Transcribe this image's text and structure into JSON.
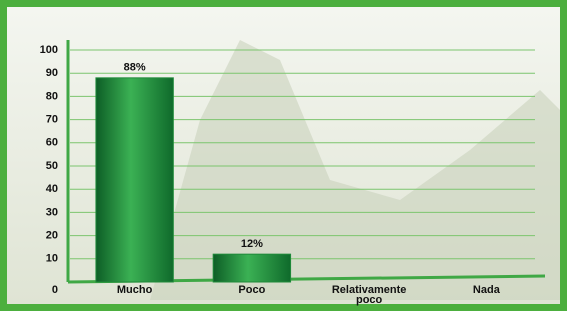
{
  "chart_data": {
    "type": "bar",
    "categories": [
      "Mucho",
      "Poco",
      "Relativamente poco",
      "Nada"
    ],
    "values": [
      88,
      12,
      0,
      0
    ],
    "value_labels": [
      "88%",
      "12%",
      null,
      null
    ],
    "color": "#1f8a3a",
    "ylim": [
      0,
      100
    ],
    "yticks": [
      0,
      10,
      20,
      30,
      40,
      50,
      60,
      70,
      80,
      90,
      100
    ],
    "grid": true
  }
}
